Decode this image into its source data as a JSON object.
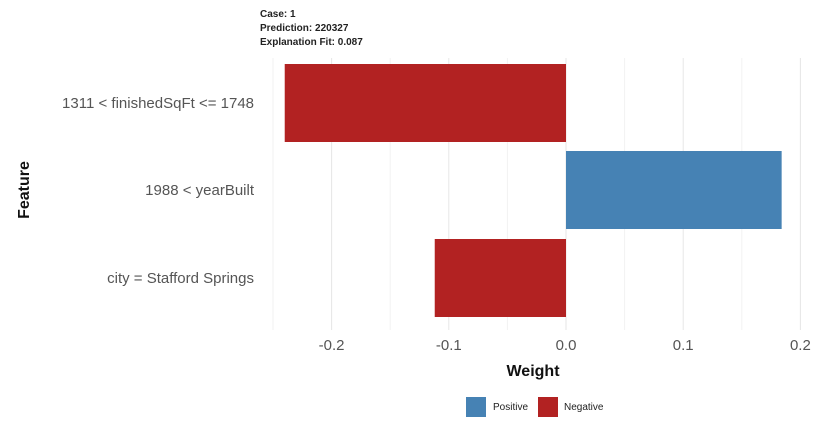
{
  "header": {
    "case": "Case: 1",
    "prediction": "Prediction: 220327",
    "fit": "Explanation Fit: 0.087"
  },
  "chart_data": {
    "type": "bar",
    "orientation": "horizontal",
    "categories": [
      "1311 < finishedSqFt <= 1748",
      "1988 < yearBuilt",
      "city = Stafford Springs"
    ],
    "values": [
      -0.24,
      0.184,
      -0.112
    ],
    "xlabel": "Weight",
    "ylabel": "Feature",
    "xlim": [
      -0.25,
      0.21
    ],
    "xticks": [
      -0.2,
      -0.1,
      0.0,
      0.1,
      0.2
    ],
    "xtick_labels": [
      "-0.2",
      "-0.1",
      "0.0",
      "0.1",
      "0.2"
    ],
    "grid": true,
    "legend": {
      "placement": "bottom",
      "entries": [
        {
          "label": "Positive",
          "color": "#4682B4"
        },
        {
          "label": "Negative",
          "color": "#B22222"
        }
      ]
    },
    "colors": {
      "positive": "#4682B4",
      "negative": "#B22222"
    }
  }
}
